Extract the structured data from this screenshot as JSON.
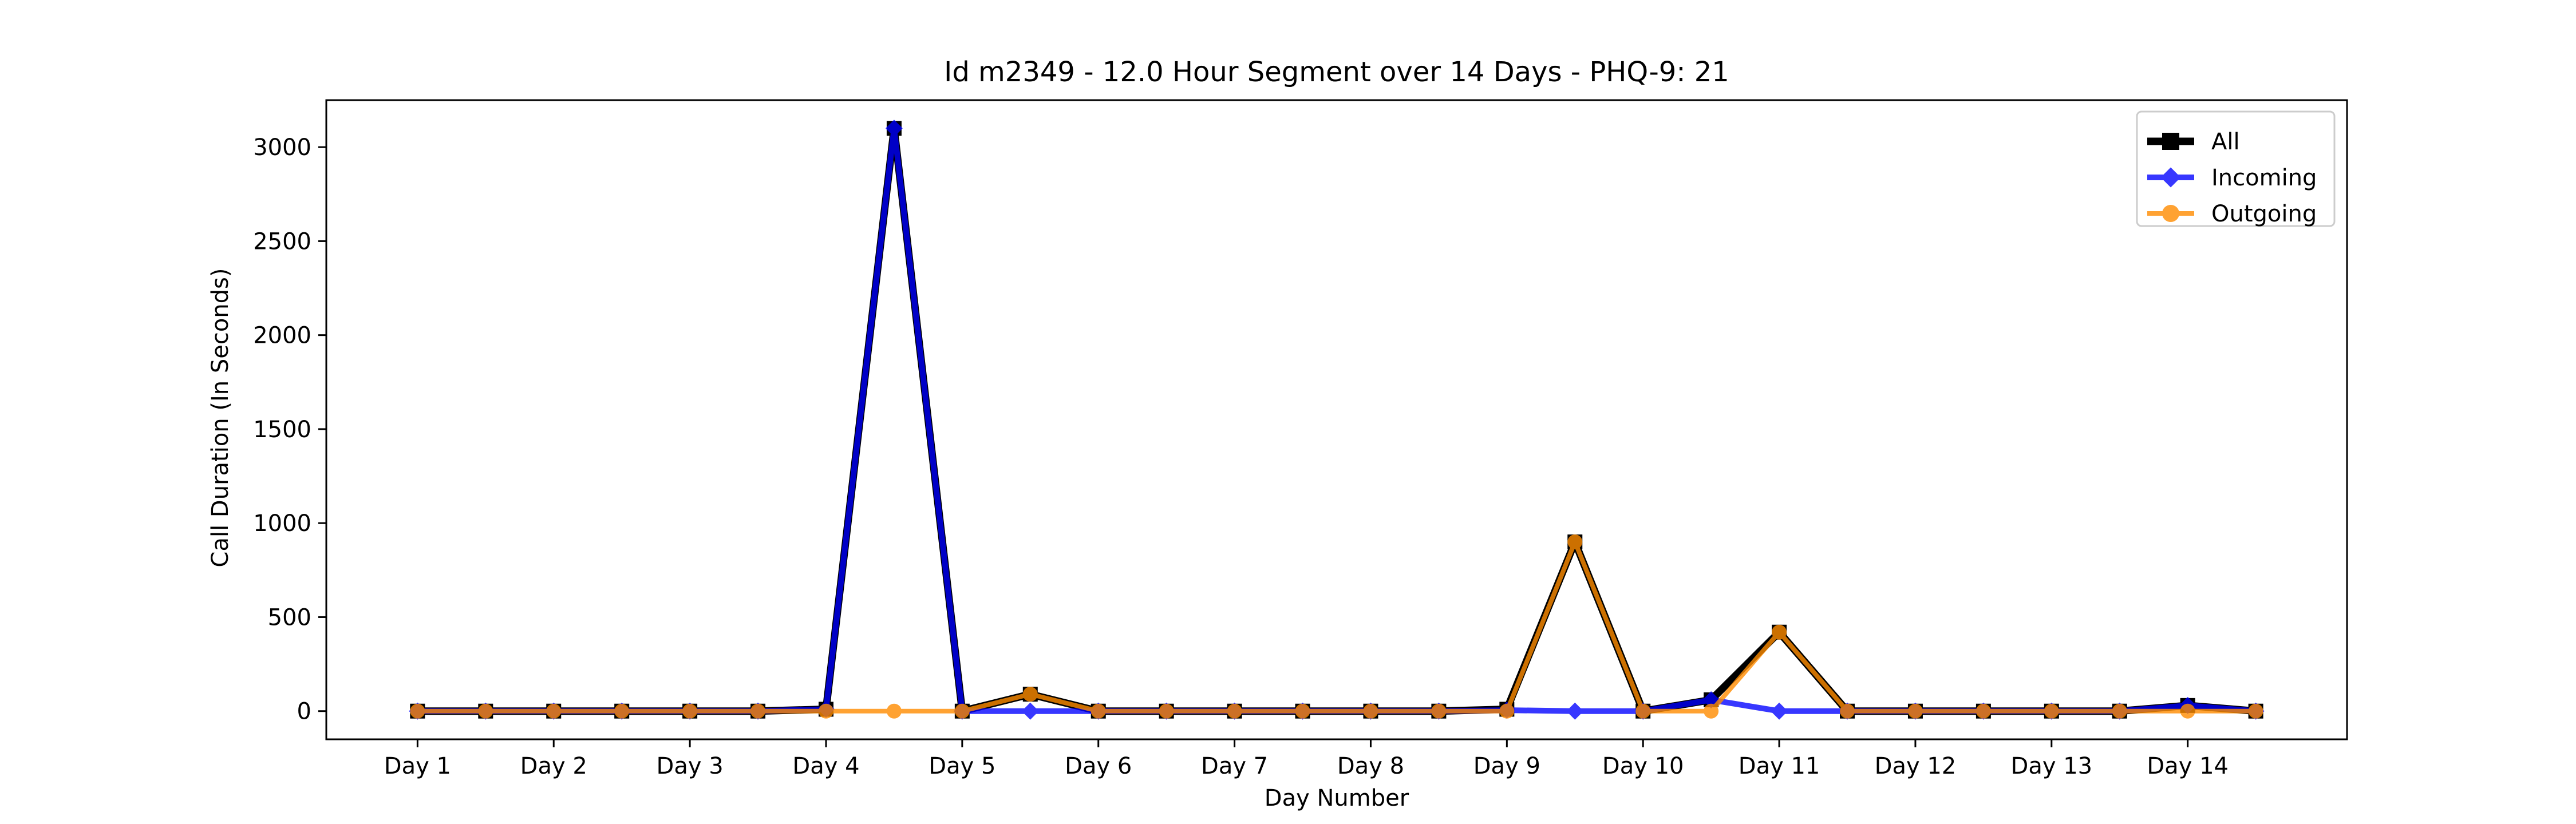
{
  "chart_data": {
    "type": "line",
    "title": "Id m2349 - 12.0 Hour Segment over 14 Days - PHQ-9: 21",
    "xlabel": "Day Number",
    "ylabel": "Call Duration (In Seconds)",
    "x": [
      1,
      1.5,
      2,
      2.5,
      3,
      3.5,
      4,
      4.5,
      5,
      5.5,
      6,
      6.5,
      7,
      7.5,
      8,
      8.5,
      9,
      9.5,
      10,
      10.5,
      11,
      11.5,
      12,
      12.5,
      13,
      13.5,
      14,
      14.5
    ],
    "categories": [
      "Day 1",
      "Day 2",
      "Day 3",
      "Day 4",
      "Day 5",
      "Day 6",
      "Day 7",
      "Day 8",
      "Day 9",
      "Day 10",
      "Day 11",
      "Day 12",
      "Day 13",
      "Day 14"
    ],
    "category_positions": [
      1,
      2,
      3,
      4,
      5,
      6,
      7,
      8,
      9,
      10,
      11,
      12,
      13,
      14
    ],
    "xlim": [
      0.33,
      15.17
    ],
    "ylim": [
      -150,
      3250
    ],
    "yticks": [
      0,
      500,
      1000,
      1500,
      2000,
      2500,
      3000
    ],
    "grid": false,
    "legend_position": "top-right",
    "series": [
      {
        "name": "All",
        "color": "#000000",
        "marker": "square",
        "values": [
          0,
          0,
          0,
          0,
          0,
          0,
          10,
          3100,
          0,
          90,
          0,
          0,
          0,
          0,
          0,
          0,
          10,
          900,
          0,
          60,
          420,
          0,
          0,
          0,
          0,
          0,
          30,
          0
        ]
      },
      {
        "name": "Incoming",
        "color": "#0000ff",
        "marker": "diamond",
        "values": [
          0,
          0,
          0,
          0,
          0,
          0,
          10,
          3100,
          0,
          0,
          0,
          0,
          0,
          0,
          0,
          0,
          5,
          0,
          0,
          60,
          0,
          0,
          0,
          0,
          0,
          0,
          30,
          0
        ]
      },
      {
        "name": "Outgoing",
        "color": "#ff8c00",
        "marker": "circle",
        "values": [
          0,
          0,
          0,
          0,
          0,
          0,
          0,
          0,
          0,
          90,
          0,
          0,
          0,
          0,
          0,
          0,
          0,
          900,
          0,
          0,
          420,
          0,
          0,
          0,
          0,
          0,
          0,
          0
        ]
      }
    ]
  }
}
